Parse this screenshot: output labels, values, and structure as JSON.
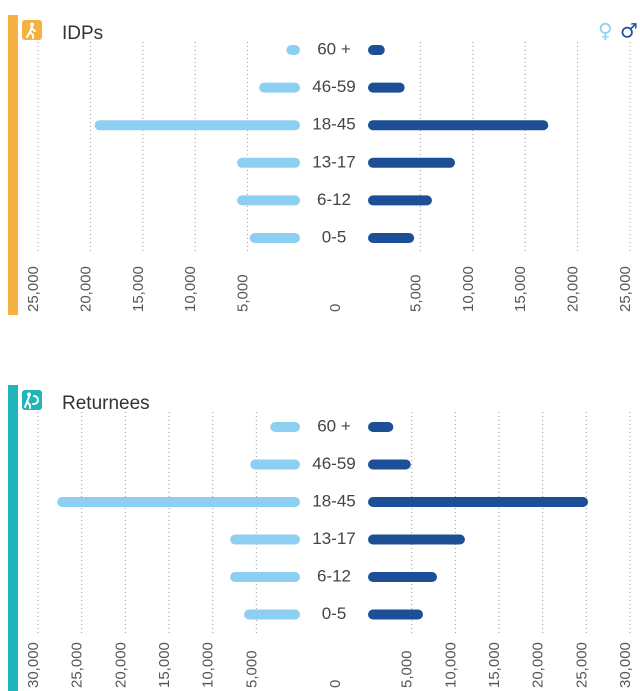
{
  "chart_data": [
    {
      "type": "pyramid",
      "title": "IDPs",
      "categories": [
        "60 +",
        "46-59",
        "18-45",
        "13-17",
        "6-12",
        "0-5"
      ],
      "series": [
        {
          "name": "♀",
          "color": "#8dcff0",
          "values": [
            1300,
            3900,
            19600,
            6000,
            6000,
            4800
          ]
        },
        {
          "name": "♂",
          "color": "#1d4f97",
          "values": [
            1600,
            3500,
            17200,
            8300,
            6100,
            4400
          ]
        }
      ],
      "xlim": [
        0,
        25000
      ],
      "xticks": [
        {
          "value": 25000,
          "label": "25,000"
        },
        {
          "value": 20000,
          "label": "20,000"
        },
        {
          "value": 15000,
          "label": "15,000"
        },
        {
          "value": 10000,
          "label": "10,000"
        },
        {
          "value": 5000,
          "label": "5,000"
        },
        0
      ],
      "accent": "#f6b143",
      "grid": true,
      "legend": "top-right"
    },
    {
      "type": "pyramid",
      "title": "Returnees",
      "categories": [
        "60 +",
        "46-59",
        "18-45",
        "13-17",
        "6-12",
        "0-5"
      ],
      "series": [
        {
          "color": "#8dcff0",
          "values": [
            3400,
            5700,
            27800,
            8000,
            8000,
            6400
          ]
        },
        {
          "color": "#1d4f97",
          "values": [
            2900,
            4900,
            25200,
            11100,
            7900,
            6300
          ]
        }
      ],
      "xlim": [
        0,
        30000
      ],
      "xticks": [
        {
          "value": 30000,
          "label": "30,000"
        },
        {
          "value": 25000,
          "label": "25,000"
        },
        {
          "value": 20000,
          "label": "20,000"
        },
        {
          "value": 15000,
          "label": "15,000"
        },
        {
          "value": 10000,
          "label": "10,000"
        },
        {
          "value": 5000,
          "label": "5,000"
        },
        0
      ],
      "accent": "#20b5b8",
      "grid": true
    }
  ]
}
